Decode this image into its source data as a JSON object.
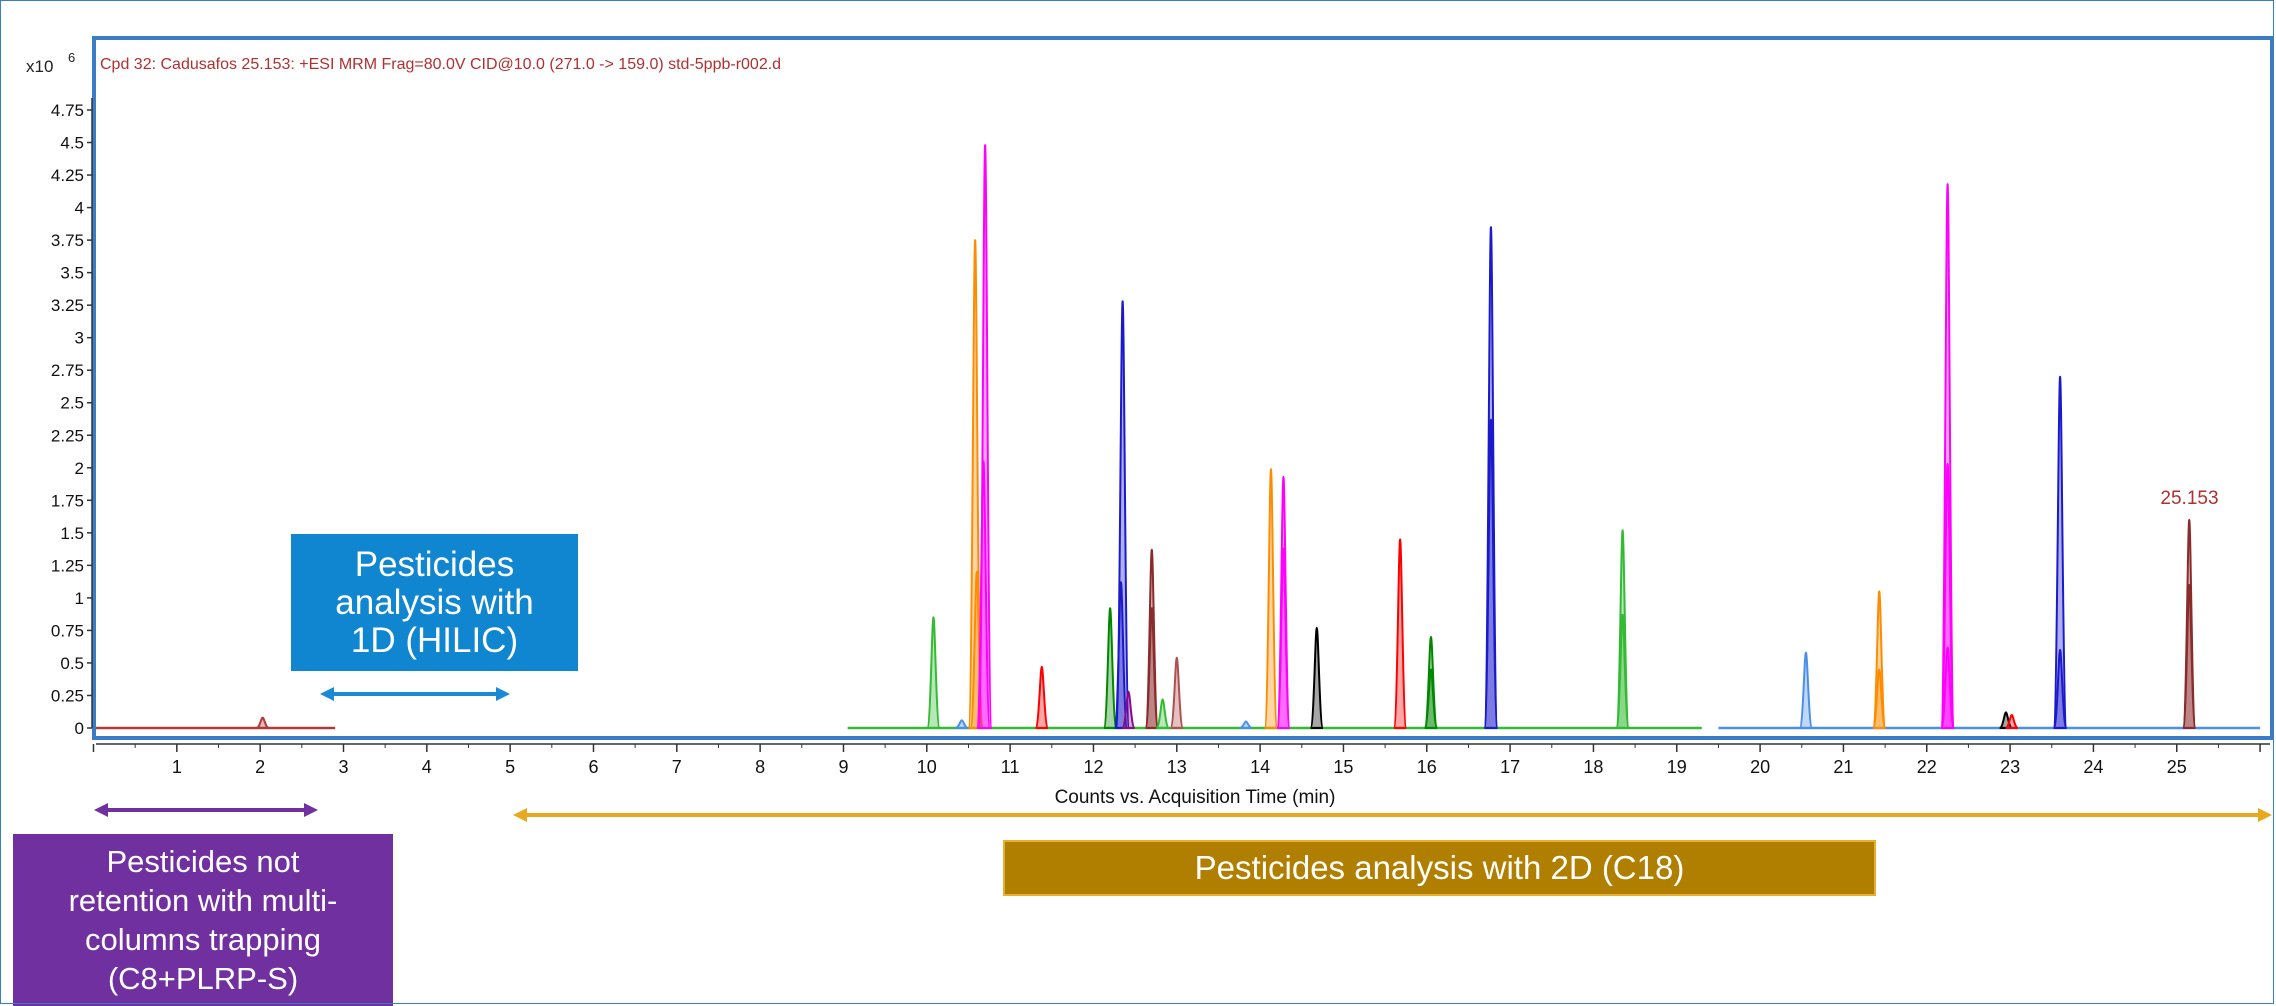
{
  "header": {
    "multiplier_base": "x10",
    "multiplier_exp": "6",
    "title": "Cpd 32: Cadusafos 25.153: +ESI MRM Frag=80.0V CID@10.0 (271.0 -> 159.0) std-5ppb-r002.d"
  },
  "callouts": {
    "hilic": "Pesticides\nanalysis with\n1D (HILIC)",
    "c18": "Pesticides analysis with 2D (C18)",
    "trapping": "Pesticides not\nretention with multi-\ncolumns trapping\n(C8+PLRP-S)"
  },
  "chart_data": {
    "type": "line",
    "title": "Cpd 32: Cadusafos 25.153: +ESI MRM Frag=80.0V CID@10.0 (271.0 -> 159.0) std-5ppb-r002.d",
    "xlabel": "Counts vs. Acquisition Time (min)",
    "ylabel": "",
    "y_multiplier": "x10^6",
    "xlim": [
      0,
      26
    ],
    "ylim": [
      0,
      4.75
    ],
    "x_ticks": [
      "1",
      "2",
      "3",
      "4",
      "5",
      "6",
      "7",
      "8",
      "9",
      "10",
      "11",
      "12",
      "13",
      "14",
      "15",
      "16",
      "17",
      "18",
      "19",
      "20",
      "21",
      "22",
      "23",
      "24",
      "25"
    ],
    "y_ticks": [
      "0",
      "0.25",
      "0.5",
      "0.75",
      "1",
      "1.25",
      "1.5",
      "1.75",
      "2",
      "2.25",
      "2.5",
      "2.75",
      "3",
      "3.25",
      "3.5",
      "3.75",
      "4",
      "4.25",
      "4.5",
      "4.75"
    ],
    "peak_annotation": {
      "x": 25.153,
      "label": "25.153"
    },
    "colors": {
      "frame": "#3a7dc6",
      "title_text": "#b03030",
      "baseline_red": "#b03a3a",
      "baseline_green": "#33bb33",
      "baseline_blue": "#4a90e8",
      "hilic_arrow": "#1a8ad4",
      "trap_arrow": "#7030a0",
      "c18_arrow": "#e8a820",
      "hilic_box": "#0f86cf",
      "c18_box": "#b07f00",
      "trap_box": "#7030a0"
    },
    "peaks": [
      {
        "x": 2.03,
        "y": 0.08,
        "color": "#b03a3a"
      },
      {
        "x": 10.08,
        "y": 0.85,
        "color": "#33bb33"
      },
      {
        "x": 10.42,
        "y": 0.06,
        "color": "#4a90e8"
      },
      {
        "x": 10.58,
        "y": 3.75,
        "color": "#ff8c00"
      },
      {
        "x": 10.6,
        "y": 1.2,
        "color": "#ff8c00"
      },
      {
        "x": 10.7,
        "y": 4.48,
        "color": "#ff00ff"
      },
      {
        "x": 10.68,
        "y": 2.05,
        "color": "#ff00ff"
      },
      {
        "x": 11.38,
        "y": 0.47,
        "color": "#ff0000"
      },
      {
        "x": 12.2,
        "y": 0.92,
        "color": "#008800"
      },
      {
        "x": 12.35,
        "y": 3.28,
        "color": "#1a1acc"
      },
      {
        "x": 12.33,
        "y": 1.12,
        "color": "#1a1acc"
      },
      {
        "x": 12.42,
        "y": 0.28,
        "color": "#8a0a8a"
      },
      {
        "x": 12.7,
        "y": 1.37,
        "color": "#8b2b2b"
      },
      {
        "x": 12.7,
        "y": 0.92,
        "color": "#8b2b2b"
      },
      {
        "x": 12.83,
        "y": 0.22,
        "color": "#33bb33"
      },
      {
        "x": 13.0,
        "y": 0.54,
        "color": "#b05050"
      },
      {
        "x": 13.83,
        "y": 0.05,
        "color": "#4a90e8"
      },
      {
        "x": 14.13,
        "y": 1.99,
        "color": "#ff8c00"
      },
      {
        "x": 14.28,
        "y": 1.93,
        "color": "#ff00ff"
      },
      {
        "x": 14.28,
        "y": 1.38,
        "color": "#ff00ff"
      },
      {
        "x": 14.68,
        "y": 0.77,
        "color": "#000000"
      },
      {
        "x": 15.68,
        "y": 1.45,
        "color": "#ff0000"
      },
      {
        "x": 16.05,
        "y": 0.7,
        "color": "#008800"
      },
      {
        "x": 16.05,
        "y": 0.45,
        "color": "#008800"
      },
      {
        "x": 16.77,
        "y": 3.85,
        "color": "#1a1acc"
      },
      {
        "x": 16.77,
        "y": 2.37,
        "color": "#1a1acc"
      },
      {
        "x": 18.35,
        "y": 1.52,
        "color": "#33bb33"
      },
      {
        "x": 18.35,
        "y": 0.87,
        "color": "#33bb33"
      },
      {
        "x": 20.55,
        "y": 0.58,
        "color": "#4a90e8"
      },
      {
        "x": 21.43,
        "y": 1.05,
        "color": "#ff8c00"
      },
      {
        "x": 21.43,
        "y": 0.45,
        "color": "#ff8c00"
      },
      {
        "x": 22.25,
        "y": 4.18,
        "color": "#ff00ff"
      },
      {
        "x": 22.25,
        "y": 2.03,
        "color": "#ff00ff"
      },
      {
        "x": 22.25,
        "y": 0.62,
        "color": "#ff00ff"
      },
      {
        "x": 22.95,
        "y": 0.12,
        "color": "#000000"
      },
      {
        "x": 23.02,
        "y": 0.1,
        "color": "#ff0000"
      },
      {
        "x": 23.6,
        "y": 2.7,
        "color": "#1a1acc"
      },
      {
        "x": 23.6,
        "y": 0.6,
        "color": "#1a1acc"
      },
      {
        "x": 25.15,
        "y": 1.6,
        "color": "#8b2b2b"
      },
      {
        "x": 25.15,
        "y": 1.1,
        "color": "#8b2b2b"
      }
    ],
    "baselines": [
      {
        "x": [
          0,
          2.9
        ],
        "color": "#b03a3a"
      },
      {
        "x": [
          9.05,
          19.3
        ],
        "color": "#33bb33"
      },
      {
        "x": [
          19.5,
          26
        ],
        "color": "#4a90e8"
      }
    ],
    "ranges": [
      {
        "name": "1D (HILIC)",
        "x": [
          2.7,
          4.95
        ],
        "color": "#1a8ad4"
      },
      {
        "name": "trapping",
        "x": [
          0,
          2.7
        ],
        "color": "#7030a0"
      },
      {
        "name": "2D (C18)",
        "x": [
          5.0,
          26
        ],
        "color": "#e8a820"
      }
    ]
  }
}
